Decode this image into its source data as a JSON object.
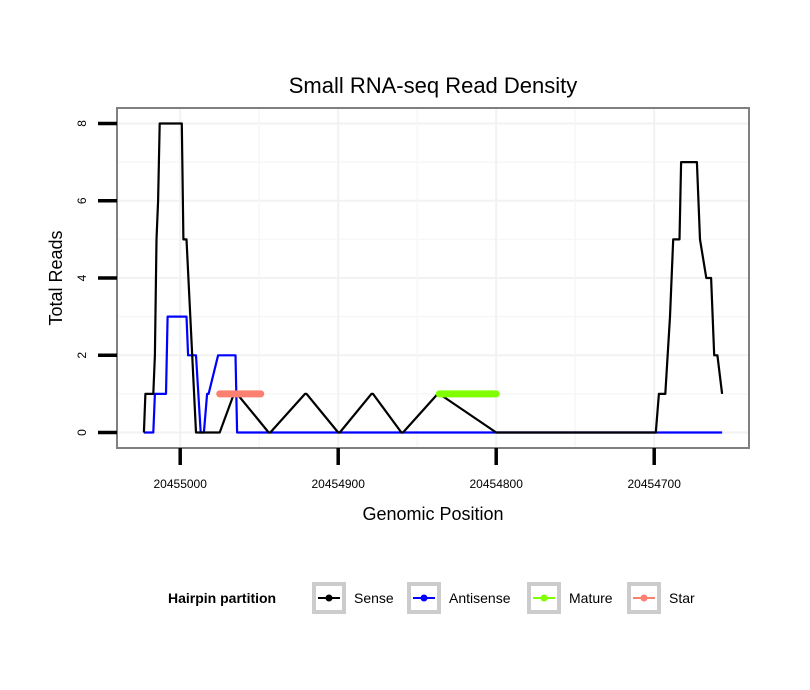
{
  "chart_data": {
    "type": "line",
    "title": "Small RNA-seq Read Density",
    "xlabel": "Genomic Position",
    "ylabel": "Total Reads",
    "xlim": [
      20455040,
      20454640
    ],
    "x_reversed": true,
    "ylim": [
      -0.4,
      8.4
    ],
    "xticks": [
      20455000,
      20454900,
      20454800,
      20454700
    ],
    "xtick_labels": [
      "20455000",
      "20454900",
      "20454800",
      "20454700"
    ],
    "yticks": [
      0,
      2,
      4,
      6,
      8
    ],
    "ytick_labels": [
      "0",
      "2",
      "4",
      "6",
      "8"
    ],
    "grid": true,
    "legend": {
      "title": "Hairpin partition",
      "placement": "bottom",
      "entries": [
        {
          "name": "Sense",
          "color": "#000000"
        },
        {
          "name": "Antisense",
          "color": "#0000ff"
        },
        {
          "name": "Mature",
          "color": "#7fff00"
        },
        {
          "name": "Star",
          "color": "#fa8072"
        }
      ]
    },
    "series": [
      {
        "name": "Sense",
        "color": "#000000",
        "x": [
          20455023,
          20455022,
          20455017,
          20455016,
          20455015,
          20455014,
          20455013,
          20454999,
          20454998,
          20454996,
          20454990,
          20454975,
          20454966,
          20454964,
          20454944,
          20454943,
          20454921,
          20454920,
          20454900,
          20454899,
          20454879,
          20454878,
          20454860,
          20454859,
          20454837,
          20454836,
          20454800,
          20454799,
          20454699,
          20454697,
          20454693,
          20454690,
          20454688,
          20454684,
          20454683,
          20454673,
          20454671,
          20454667,
          20454664,
          20454662,
          20454660,
          20454657
        ],
        "y": [
          0,
          1,
          1,
          2,
          5,
          6,
          8,
          8,
          5,
          5,
          0,
          0,
          1,
          1,
          0,
          0,
          1,
          1,
          0,
          0,
          1,
          1,
          0,
          0,
          1,
          1,
          0,
          0,
          0,
          1,
          1,
          3,
          5,
          5,
          7,
          7,
          5,
          4,
          4,
          2,
          2,
          1
        ]
      },
      {
        "name": "Antisense",
        "color": "#0000ff",
        "x": [
          20455023,
          20455017,
          20455016,
          20455009,
          20455008,
          20454996,
          20454995,
          20454991,
          20454990,
          20454987,
          20454985,
          20454983,
          20454982,
          20454976,
          20454975,
          20454965,
          20454964,
          20454957,
          20454657
        ],
        "y": [
          0,
          0,
          1,
          1,
          3,
          3,
          2,
          2,
          2,
          0,
          0,
          1,
          1,
          2,
          2,
          2,
          0,
          0,
          0
        ]
      },
      {
        "name": "Mature",
        "color": "#7fff00",
        "x_start": 20454836,
        "x_end": 20454800,
        "y": 1
      },
      {
        "name": "Star",
        "color": "#fa8072",
        "x_start": 20454975,
        "x_end": 20454949,
        "y": 1
      }
    ]
  }
}
